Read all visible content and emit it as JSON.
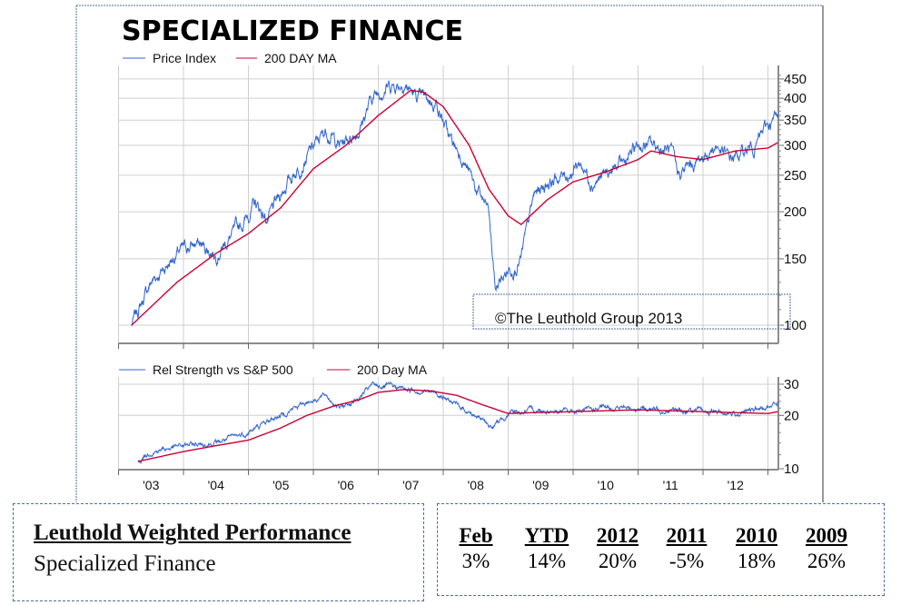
{
  "chart_data": [
    {
      "type": "line",
      "title": "SPECIALIZED FINANCE",
      "y_scale": "log",
      "ylim": [
        90,
        470
      ],
      "xlim": [
        2003.0,
        2013.17
      ],
      "y_ticks": [
        100,
        150,
        200,
        250,
        300,
        350,
        400,
        450
      ],
      "x_tick_labels": [
        "'03",
        "'04",
        "'05",
        "'06",
        "'07",
        "'08",
        "'09",
        "'10",
        "'11",
        "'12"
      ],
      "grid": true,
      "legend_position": "top-left",
      "annotation": "©The Leuthold Group 2013",
      "series": [
        {
          "name": "Price Index",
          "color": "#3366cc",
          "x": [
            2003.2,
            2003.5,
            2003.9,
            2004.2,
            2004.5,
            2004.9,
            2005.1,
            2005.3,
            2005.6,
            2005.9,
            2006.2,
            2006.4,
            2006.7,
            2006.9,
            2007.1,
            2007.4,
            2007.6,
            2007.9,
            2008.1,
            2008.3,
            2008.5,
            2008.7,
            2008.8,
            2009.0,
            2009.2,
            2009.4,
            2009.6,
            2009.9,
            2010.1,
            2010.3,
            2010.5,
            2010.8,
            2011.0,
            2011.2,
            2011.5,
            2011.6,
            2011.9,
            2012.2,
            2012.4,
            2012.6,
            2012.8,
            2013.0,
            2013.15
          ],
          "y": [
            100,
            130,
            155,
            165,
            155,
            185,
            210,
            190,
            240,
            280,
            330,
            300,
            330,
            400,
            430,
            440,
            400,
            390,
            310,
            280,
            230,
            200,
            125,
            140,
            150,
            220,
            240,
            250,
            270,
            240,
            250,
            270,
            300,
            300,
            290,
            250,
            270,
            300,
            275,
            285,
            300,
            340,
            355
          ]
        },
        {
          "name": "200 DAY MA",
          "color": "#cc0033",
          "x": [
            2003.2,
            2003.9,
            2004.5,
            2005.0,
            2005.5,
            2006.0,
            2006.5,
            2007.0,
            2007.5,
            2007.7,
            2008.0,
            2008.4,
            2008.7,
            2009.0,
            2009.2,
            2009.6,
            2010.0,
            2010.5,
            2011.0,
            2011.2,
            2011.6,
            2012.0,
            2012.5,
            2013.0,
            2013.15
          ],
          "y": [
            100,
            130,
            155,
            175,
            205,
            260,
            300,
            360,
            420,
            415,
            380,
            300,
            230,
            195,
            185,
            215,
            240,
            255,
            275,
            290,
            280,
            275,
            290,
            295,
            305
          ]
        }
      ]
    },
    {
      "type": "line",
      "y_scale": "log",
      "ylim": [
        10,
        31
      ],
      "xlim": [
        2003.0,
        2013.17
      ],
      "y_ticks": [
        10,
        20,
        30
      ],
      "x_tick_labels": [
        "'03",
        "'04",
        "'05",
        "'06",
        "'07",
        "'08",
        "'09",
        "'10",
        "'11",
        "'12"
      ],
      "grid": true,
      "legend_position": "top-left",
      "series": [
        {
          "name": "Rel Strength vs S&P 500",
          "color": "#3366cc",
          "x": [
            2003.3,
            2003.5,
            2004.0,
            2004.5,
            2005.0,
            2005.3,
            2005.6,
            2005.9,
            2006.2,
            2006.4,
            2006.7,
            2006.9,
            2007.2,
            2007.5,
            2007.9,
            2008.1,
            2008.4,
            2008.6,
            2008.75,
            2009.0,
            2009.5,
            2010.0,
            2010.5,
            2011.0,
            2011.5,
            2012.0,
            2012.5,
            2013.0,
            2013.15
          ],
          "y": [
            11,
            12.5,
            13.5,
            14,
            16,
            18.5,
            21,
            24,
            26,
            22,
            25,
            29.5,
            29,
            28,
            27,
            24,
            21,
            19,
            17,
            20.5,
            21.5,
            21,
            22,
            22,
            21.5,
            21,
            20.5,
            22,
            24
          ]
        },
        {
          "name": "200 Day MA",
          "color": "#cc0033",
          "x": [
            2003.3,
            2004.0,
            2004.5,
            2005.0,
            2005.5,
            2005.9,
            2006.3,
            2006.7,
            2007.0,
            2007.4,
            2007.8,
            2008.2,
            2008.6,
            2009.0,
            2009.5,
            2010.0,
            2011.0,
            2012.0,
            2013.0,
            2013.15
          ],
          "y": [
            11,
            12.5,
            13.5,
            14.5,
            17,
            20,
            22.5,
            24.5,
            27,
            28,
            27.5,
            26,
            23,
            20.5,
            20.8,
            21,
            21.5,
            21,
            20.5,
            21
          ]
        }
      ]
    }
  ],
  "performance": {
    "title": "Leuthold Weighted Performance",
    "subtitle": "Specialized Finance",
    "columns": [
      {
        "header": "Feb",
        "value": "3%"
      },
      {
        "header": "YTD",
        "value": "14%"
      },
      {
        "header": "2012",
        "value": "20%"
      },
      {
        "header": "2011",
        "value": "-5%"
      },
      {
        "header": "2010",
        "value": "18%"
      },
      {
        "header": "2009",
        "value": "26%"
      }
    ]
  }
}
